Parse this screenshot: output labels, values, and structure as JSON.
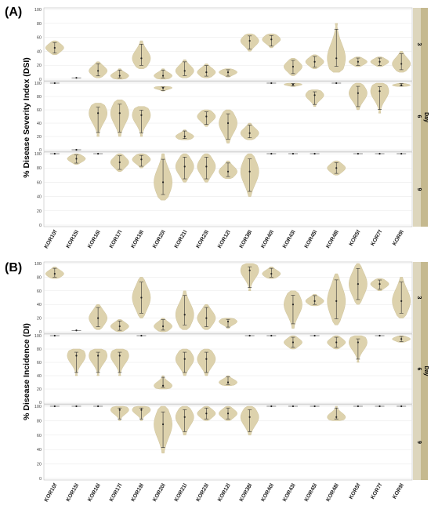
{
  "chart_data": [
    {
      "panel_label": "(A)",
      "type": "violin",
      "ylabel": "% Disease Severity Index (DSI)",
      "strip_title": "Day",
      "rows": [
        "3",
        "6",
        "9"
      ],
      "ylim": [
        0,
        100
      ],
      "yticks": [
        0,
        20,
        40,
        60,
        80,
        100
      ],
      "categories": [
        "KOR10f",
        "KOR15l",
        "KOR16l",
        "KOR17l",
        "KOR19l",
        "KOR20l",
        "KOR21l",
        "KOR23l",
        "KOR12l",
        "KOR38l",
        "KOR40l",
        "KOR43l",
        "KOR45l",
        "KOR48l",
        "KOR5f",
        "KOR7f",
        "KOR9l"
      ],
      "series": [
        {
          "row": "3",
          "median": [
            45,
            2,
            12,
            5,
            30,
            5,
            12,
            10,
            10,
            55,
            57,
            18,
            25,
            30,
            25,
            25,
            22
          ],
          "min": [
            35,
            1,
            2,
            0,
            15,
            0,
            2,
            2,
            3,
            40,
            45,
            5,
            15,
            10,
            18,
            18,
            10
          ],
          "max": [
            55,
            3,
            25,
            15,
            55,
            15,
            28,
            22,
            15,
            65,
            65,
            30,
            35,
            80,
            32,
            32,
            40
          ]
        },
        {
          "row": "6",
          "median": [
            100,
            0,
            55,
            55,
            52,
            93,
            20,
            50,
            40,
            25,
            100,
            98,
            82,
            100,
            85,
            88,
            97
          ],
          "min": [
            100,
            0,
            20,
            20,
            20,
            88,
            15,
            35,
            10,
            15,
            100,
            95,
            65,
            100,
            60,
            55,
            95
          ],
          "max": [
            100,
            0,
            70,
            75,
            65,
            95,
            30,
            60,
            60,
            40,
            100,
            100,
            90,
            100,
            100,
            100,
            100
          ]
        },
        {
          "row": "9",
          "median": [
            100,
            93,
            100,
            88,
            92,
            60,
            82,
            82,
            75,
            75,
            100,
            100,
            100,
            80,
            100,
            100,
            100
          ],
          "min": [
            100,
            85,
            100,
            75,
            80,
            35,
            60,
            60,
            65,
            40,
            100,
            100,
            100,
            70,
            100,
            100,
            100
          ],
          "max": [
            100,
            100,
            100,
            100,
            100,
            100,
            100,
            100,
            90,
            100,
            100,
            100,
            100,
            90,
            100,
            100,
            100
          ]
        }
      ]
    },
    {
      "panel_label": "(B)",
      "type": "violin",
      "ylabel": "% Disease Incidence (DI)",
      "strip_title": "Day",
      "rows": [
        "3",
        "6",
        "9"
      ],
      "ylim": [
        0,
        100
      ],
      "yticks": [
        0,
        20,
        40,
        60,
        80,
        100
      ],
      "categories": [
        "KOR10f",
        "KOR15l",
        "KOR16l",
        "KOR17l",
        "KOR19l",
        "KOR20l",
        "KOR21l",
        "KOR23l",
        "KOR12l",
        "KOR38l",
        "KOR40l",
        "KOR43l",
        "KOR45l",
        "KOR48l",
        "KOR5f",
        "KOR7f",
        "KOR9l"
      ],
      "series": [
        {
          "row": "3",
          "median": [
            85,
            2,
            20,
            8,
            50,
            8,
            25,
            20,
            15,
            90,
            85,
            40,
            45,
            45,
            70,
            70,
            45
          ],
          "min": [
            78,
            1,
            3,
            0,
            20,
            0,
            3,
            3,
            5,
            60,
            78,
            5,
            38,
            10,
            40,
            60,
            20
          ],
          "max": [
            95,
            3,
            40,
            18,
            80,
            20,
            60,
            40,
            20,
            100,
            95,
            60,
            55,
            85,
            100,
            78,
            80
          ]
        },
        {
          "row": "6",
          "median": [
            100,
            70,
            70,
            70,
            100,
            25,
            65,
            65,
            30,
            100,
            100,
            90,
            100,
            90,
            90,
            100,
            95
          ],
          "min": [
            100,
            40,
            40,
            40,
            100,
            20,
            40,
            40,
            25,
            100,
            100,
            80,
            100,
            80,
            60,
            100,
            90
          ],
          "max": [
            100,
            80,
            80,
            80,
            100,
            40,
            80,
            80,
            40,
            100,
            100,
            100,
            100,
            100,
            100,
            100,
            100
          ]
        },
        {
          "row": "9",
          "median": [
            100,
            100,
            100,
            95,
            95,
            75,
            85,
            90,
            90,
            85,
            100,
            100,
            100,
            85,
            100,
            100,
            100
          ],
          "min": [
            100,
            100,
            100,
            80,
            80,
            35,
            60,
            80,
            80,
            60,
            100,
            100,
            100,
            80,
            100,
            100,
            100
          ],
          "max": [
            100,
            100,
            100,
            100,
            100,
            100,
            100,
            100,
            100,
            100,
            100,
            100,
            100,
            100,
            100,
            100,
            100
          ]
        }
      ]
    }
  ],
  "colors": {
    "violin_fill": "#ddd2ad",
    "violin_stroke": "#cfc39a",
    "strip_fill": "#ddd6bd",
    "strip_dark": "#c5b98f",
    "grid": "#e6e6e6"
  }
}
